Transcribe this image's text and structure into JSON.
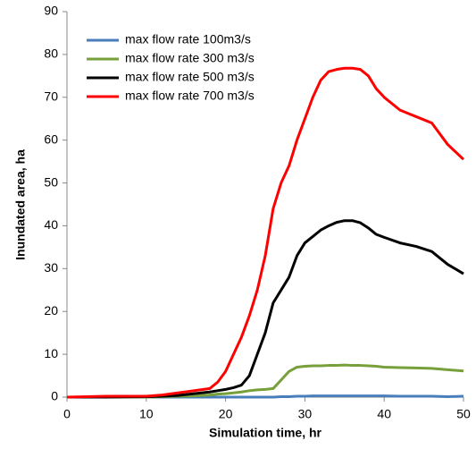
{
  "chart_data": {
    "type": "line",
    "xlabel": "Simulation time, hr",
    "ylabel": "Inundated area, ha",
    "x": [
      0,
      5,
      10,
      12,
      14,
      16,
      18,
      19,
      20,
      21,
      22,
      23,
      24,
      25,
      26,
      27,
      28,
      29,
      30,
      31,
      32,
      33,
      34,
      35,
      36,
      37,
      38,
      39,
      40,
      42,
      44,
      46,
      48,
      50
    ],
    "series": [
      {
        "name": "max flow rate 100m3/s",
        "color": "#4a7ebb",
        "values": [
          0,
          0,
          0,
          0,
          0,
          0,
          0,
          0,
          0,
          0,
          0,
          0,
          0,
          0,
          0,
          0.1,
          0.1,
          0.2,
          0.2,
          0.3,
          0.3,
          0.3,
          0.3,
          0.3,
          0.3,
          0.3,
          0.3,
          0.3,
          0.3,
          0.2,
          0.2,
          0.2,
          0.1,
          0.2
        ]
      },
      {
        "name": "max flow rate 300 m3/s",
        "color": "#77a03a",
        "values": [
          0,
          0,
          0,
          0.1,
          0.2,
          0.3,
          0.5,
          0.7,
          0.8,
          1,
          1.2,
          1.5,
          1.7,
          1.8,
          2,
          4,
          6,
          7,
          7.2,
          7.3,
          7.3,
          7.4,
          7.4,
          7.5,
          7.4,
          7.4,
          7.3,
          7.2,
          7,
          6.9,
          6.8,
          6.7,
          6.4,
          6.1
        ]
      },
      {
        "name": "max flow rate 500 m3/s",
        "color": "#000000",
        "values": [
          0,
          0,
          0.1,
          0.2,
          0.4,
          0.8,
          1.2,
          1.5,
          1.8,
          2.2,
          2.8,
          5,
          10,
          15,
          22,
          25,
          28,
          33,
          36,
          37.5,
          39,
          40,
          40.8,
          41.2,
          41.2,
          40.7,
          39.5,
          38,
          37.3,
          36,
          35.2,
          34,
          31,
          28.8
        ]
      },
      {
        "name": "max flow rate 700 m3/s",
        "color": "#ff0000",
        "values": [
          0,
          0.2,
          0.2,
          0.5,
          1,
          1.5,
          2,
          3.5,
          6,
          10,
          14,
          19,
          25,
          33,
          44,
          50,
          54,
          60,
          65,
          70,
          74,
          76,
          76.5,
          76.8,
          76.8,
          76.5,
          75,
          72,
          70,
          67,
          65.5,
          64,
          59,
          55.5
        ]
      }
    ],
    "xlim": [
      0,
      50
    ],
    "xticks": [
      0,
      10,
      20,
      30,
      40,
      50
    ],
    "ylim": [
      0,
      90
    ],
    "yticks": [
      0,
      10,
      20,
      30,
      40,
      50,
      60,
      70,
      80,
      90
    ],
    "legend": "upper-left"
  }
}
